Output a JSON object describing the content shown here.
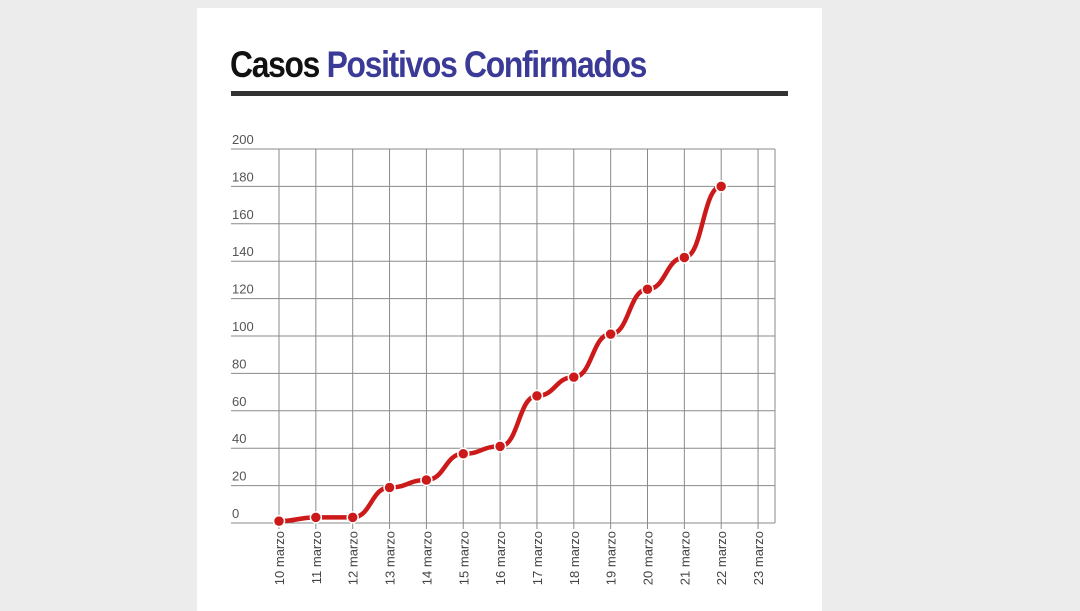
{
  "title": {
    "part1": "Casos",
    "part2": "Positivos Confirmados"
  },
  "colors": {
    "title_dark": "#111111",
    "title_accent": "#3b3a96",
    "line": "#cc1a1a",
    "grid": "#8a8a8a",
    "background": "#ececec"
  },
  "chart_data": {
    "type": "line",
    "title": "Casos Positivos Confirmados",
    "xlabel": "",
    "ylabel": "",
    "categories": [
      "10 marzo",
      "11 marzo",
      "12 marzo",
      "13 marzo",
      "14 marzo",
      "15 marzo",
      "16 marzo",
      "17 marzo",
      "18 marzo",
      "19 marzo",
      "20 marzo",
      "21 marzo",
      "22 marzo",
      "23 marzo"
    ],
    "series": [
      {
        "name": "Casos positivos",
        "values": [
          1,
          3,
          3,
          19,
          23,
          37,
          41,
          68,
          78,
          101,
          125,
          142,
          180,
          null
        ]
      }
    ],
    "yticks": [
      0,
      20,
      40,
      60,
      80,
      100,
      120,
      140,
      160,
      180,
      200
    ],
    "ylim": [
      0,
      200
    ],
    "grid": true,
    "legend": "none"
  }
}
